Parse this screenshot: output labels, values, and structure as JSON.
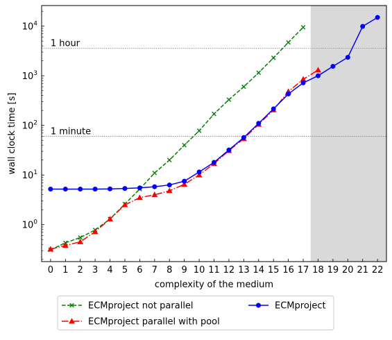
{
  "chart_data": {
    "type": "line",
    "xlabel": "complexity of the medium",
    "ylabel": "wall clock time [s]",
    "yscale": "log",
    "ylim": [
      0.18,
      26000
    ],
    "xlim": [
      -0.6,
      22.6
    ],
    "x_ticks": [
      "0",
      "1",
      "2",
      "3",
      "4",
      "5",
      "6",
      "7",
      "8",
      "9",
      "10",
      "11",
      "12",
      "13",
      "14",
      "15",
      "16",
      "17",
      "18",
      "19",
      "20",
      "21",
      "22"
    ],
    "y_ticks": [
      {
        "value": 1,
        "label": "10^0"
      },
      {
        "value": 10,
        "label": "10^1"
      },
      {
        "value": 100,
        "label": "10^2"
      },
      {
        "value": 1000,
        "label": "10^3"
      },
      {
        "value": 10000,
        "label": "10^4"
      }
    ],
    "shaded_region": {
      "x_from": 17.5,
      "x_to": 22.6,
      "color": "#d9d9d9"
    },
    "reference_lines": [
      {
        "value": 3600,
        "label": "1 hour"
      },
      {
        "value": 60,
        "label": "1 minute"
      }
    ],
    "legend_position": "bottom-outside",
    "series": [
      {
        "name": "ECMproject not parallel",
        "color": "#008000",
        "line_style": "dashed",
        "marker": "x",
        "x": [
          0,
          1,
          2,
          3,
          4,
          5,
          6,
          7,
          8,
          9,
          10,
          11,
          12,
          13,
          14,
          15,
          16,
          17
        ],
        "y": [
          0.31,
          0.43,
          0.55,
          0.78,
          1.3,
          2.6,
          5.2,
          11,
          20,
          40,
          78,
          170,
          330,
          600,
          1150,
          2300,
          4700,
          9500
        ]
      },
      {
        "name": "ECMproject parallel with pool",
        "color": "#ff0000",
        "line_style": "dashdot",
        "marker": "triangle",
        "x": [
          0,
          1,
          2,
          3,
          4,
          5,
          6,
          7,
          8,
          9,
          10,
          11,
          12,
          13,
          14,
          15,
          16,
          17,
          18
        ],
        "y": [
          0.32,
          0.38,
          0.45,
          0.72,
          1.3,
          2.5,
          3.5,
          4.0,
          4.8,
          6.5,
          10,
          17,
          31,
          54,
          105,
          205,
          480,
          850,
          1300
        ]
      },
      {
        "name": "ECMproject",
        "color": "#0000ff",
        "line_style": "solid",
        "marker": "circle",
        "x": [
          0,
          1,
          2,
          3,
          4,
          5,
          6,
          7,
          8,
          9,
          10,
          11,
          12,
          13,
          14,
          15,
          16,
          17,
          18,
          19,
          20,
          21,
          22
        ],
        "y": [
          5.2,
          5.2,
          5.2,
          5.2,
          5.25,
          5.35,
          5.5,
          5.8,
          6.3,
          7.5,
          11.5,
          18,
          32,
          57,
          110,
          215,
          430,
          720,
          1000,
          1550,
          2350,
          9900,
          15000
        ]
      }
    ]
  }
}
